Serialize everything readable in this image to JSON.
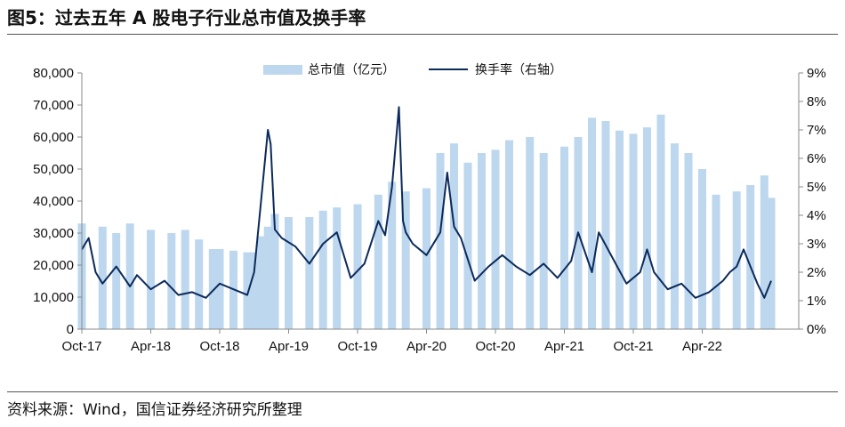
{
  "header": {
    "title": "图5：过去五年 A 股电子行业总市值及换手率"
  },
  "footer": {
    "source": "资料来源：Wind，国信证券经济研究所整理"
  },
  "colors": {
    "bar": "#bdd7ee",
    "line": "#0c2a5b"
  },
  "chart_data": {
    "type": "bar+line",
    "title": "",
    "legend": {
      "placement": "top-center",
      "entries": [
        "总市值（亿元）",
        "换手率（右轴）"
      ]
    },
    "x_ticks": [
      "Oct-17",
      "Apr-18",
      "Oct-18",
      "Apr-19",
      "Oct-19",
      "Apr-20",
      "Oct-20",
      "Apr-21",
      "Oct-21",
      "Apr-22"
    ],
    "y_left": {
      "range": [
        0,
        80000
      ],
      "ticks": [
        "0",
        "10,000",
        "20,000",
        "30,000",
        "40,000",
        "50,000",
        "60,000",
        "70,000",
        "80,000"
      ]
    },
    "y_right": {
      "range": [
        0,
        9
      ],
      "ticks": [
        "0%",
        "1%",
        "2%",
        "3%",
        "4%",
        "5%",
        "6%",
        "7%",
        "8%",
        "9%"
      ]
    },
    "series": [
      {
        "name": "总市值（亿元）",
        "type": "bar",
        "axis": "left",
        "x": [
          2017.75,
          2017.9,
          2018.0,
          2018.1,
          2018.25,
          2018.4,
          2018.5,
          2018.6,
          2018.7,
          2018.75,
          2018.85,
          2018.95,
          2019.0,
          2019.05,
          2019.1,
          2019.15,
          2019.25,
          2019.4,
          2019.5,
          2019.6,
          2019.75,
          2019.9,
          2020.0,
          2020.1,
          2020.25,
          2020.35,
          2020.45,
          2020.55,
          2020.65,
          2020.75,
          2020.85,
          2021.0,
          2021.1,
          2021.25,
          2021.35,
          2021.45,
          2021.55,
          2021.65,
          2021.75,
          2021.85,
          2021.95,
          2022.05,
          2022.15,
          2022.25,
          2022.35,
          2022.5,
          2022.6,
          2022.7,
          2022.75
        ],
        "values": [
          33000,
          32000,
          30000,
          33000,
          31000,
          30000,
          31000,
          28000,
          25000,
          25000,
          24500,
          24000,
          24000,
          29000,
          32000,
          36000,
          35000,
          35000,
          37000,
          38000,
          39000,
          42000,
          46000,
          43000,
          44000,
          55000,
          58000,
          52000,
          55000,
          56000,
          59000,
          60000,
          55000,
          57000,
          60000,
          66000,
          65000,
          62000,
          61000,
          63000,
          67000,
          58000,
          55000,
          50000,
          42000,
          43000,
          45000,
          48000,
          41000
        ]
      },
      {
        "name": "换手率（右轴）",
        "type": "line",
        "axis": "right",
        "x": [
          2017.75,
          2017.8,
          2017.85,
          2017.9,
          2018.0,
          2018.1,
          2018.15,
          2018.25,
          2018.35,
          2018.45,
          2018.55,
          2018.65,
          2018.75,
          2018.85,
          2018.95,
          2019.0,
          2019.05,
          2019.1,
          2019.12,
          2019.15,
          2019.2,
          2019.3,
          2019.4,
          2019.5,
          2019.6,
          2019.7,
          2019.8,
          2019.9,
          2019.95,
          2020.0,
          2020.05,
          2020.08,
          2020.1,
          2020.15,
          2020.25,
          2020.35,
          2020.4,
          2020.45,
          2020.5,
          2020.6,
          2020.7,
          2020.8,
          2020.9,
          2021.0,
          2021.1,
          2021.2,
          2021.3,
          2021.35,
          2021.45,
          2021.5,
          2021.6,
          2021.7,
          2021.8,
          2021.85,
          2021.9,
          2022.0,
          2022.1,
          2022.2,
          2022.3,
          2022.4,
          2022.45,
          2022.5,
          2022.55,
          2022.6,
          2022.65,
          2022.7,
          2022.75
        ],
        "values": [
          2.8,
          3.2,
          2.0,
          1.6,
          2.2,
          1.5,
          1.9,
          1.4,
          1.7,
          1.2,
          1.3,
          1.1,
          1.6,
          1.4,
          1.2,
          2.0,
          4.5,
          7.0,
          6.5,
          3.5,
          3.2,
          2.9,
          2.3,
          3.0,
          3.4,
          1.8,
          2.3,
          3.8,
          3.3,
          5.0,
          7.8,
          3.8,
          3.4,
          3.0,
          2.6,
          3.4,
          5.5,
          3.6,
          3.2,
          1.7,
          2.2,
          2.6,
          2.2,
          1.9,
          2.3,
          1.8,
          2.4,
          3.4,
          2.0,
          3.4,
          2.5,
          1.6,
          2.0,
          2.8,
          2.0,
          1.4,
          1.6,
          1.1,
          1.3,
          1.7,
          2.0,
          2.2,
          2.8,
          2.2,
          1.6,
          1.1,
          1.7
        ]
      }
    ]
  }
}
